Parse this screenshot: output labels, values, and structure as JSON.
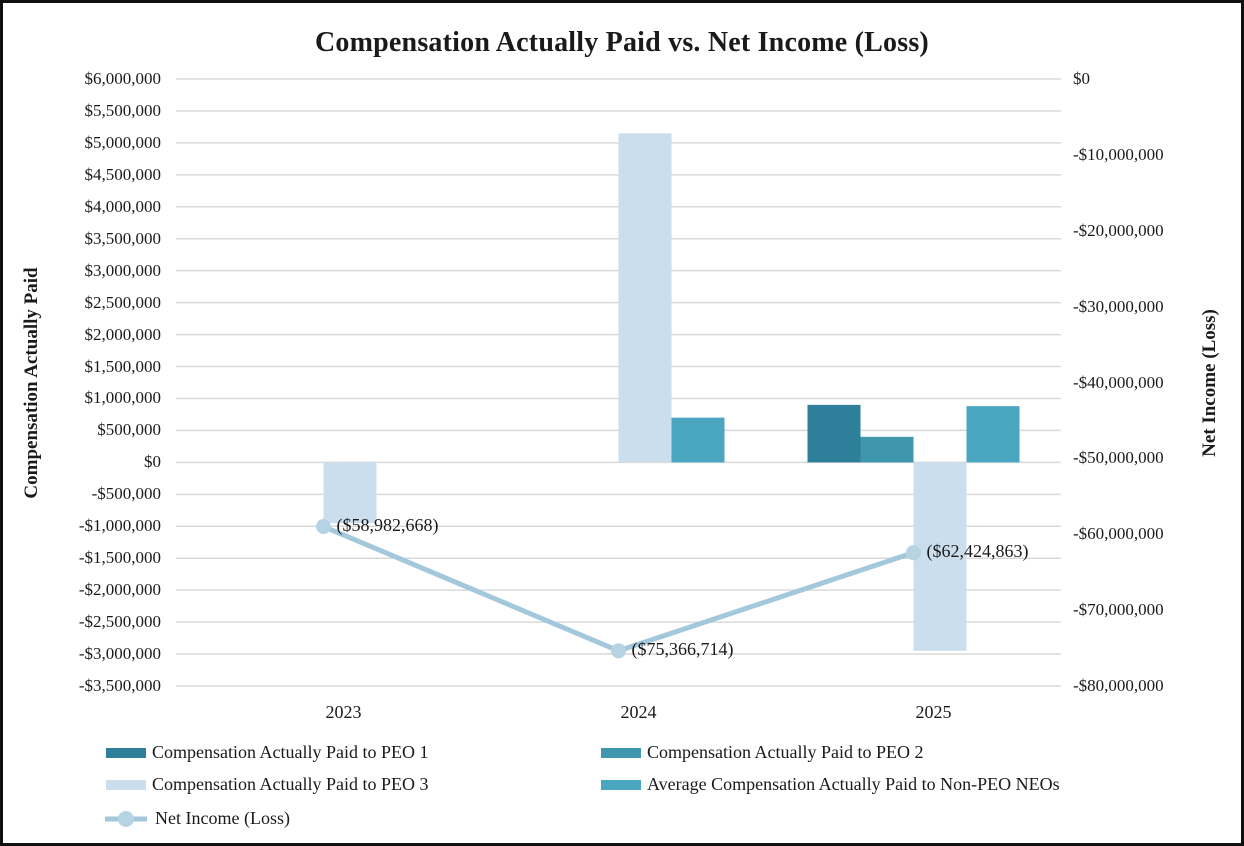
{
  "frame": {
    "background": "#ffffff",
    "border_color": "#101010"
  },
  "chart_data": {
    "type": "combo-bar-line",
    "title": "Compensation Actually Paid vs. Net Income (Loss)",
    "categories": [
      "2023",
      "2024",
      "2025"
    ],
    "grid": true,
    "gridline_color": "#d9d9d9",
    "legend_position": "bottom",
    "left_axis": {
      "label": "Compensation Actually Paid",
      "min": -3500000,
      "max": 6000000,
      "step": 500000,
      "tick_labels": [
        "$6,000,000",
        "$5,500,000",
        "$5,000,000",
        "$4,500,000",
        "$4,000,000",
        "$3,500,000",
        "$3,000,000",
        "$2,500,000",
        "$2,000,000",
        "$1,500,000",
        "$1,000,000",
        "$500,000",
        "$0",
        "-$500,000",
        "-$1,000,000",
        "-$1,500,000",
        "-$2,000,000",
        "-$2,500,000",
        "-$3,000,000",
        "-$3,500,000"
      ]
    },
    "right_axis": {
      "label": "Net Income (Loss)",
      "min": -80000000,
      "max": 0,
      "step": 10000000,
      "tick_labels": [
        "$0",
        "-$10,000,000",
        "-$20,000,000",
        "-$30,000,000",
        "-$40,000,000",
        "-$50,000,000",
        "-$60,000,000",
        "-$70,000,000",
        "-$80,000,000"
      ]
    },
    "bar_series": [
      {
        "name": "Compensation Actually Paid to PEO 1",
        "color": "#2e7f99",
        "axis": "left",
        "values": [
          null,
          null,
          900000
        ]
      },
      {
        "name": "Compensation Actually Paid to PEO 2",
        "color": "#3e97ad",
        "axis": "left",
        "values": [
          null,
          null,
          400000
        ]
      },
      {
        "name": "Compensation Actually Paid to PEO 3",
        "color": "#cbdeed",
        "axis": "left",
        "values": [
          -950000,
          5150000,
          -2950000
        ]
      },
      {
        "name": "Average Compensation Actually Paid to Non-PEO NEOs",
        "color": "#49a5c0",
        "axis": "left",
        "values": [
          null,
          700000,
          880000
        ]
      }
    ],
    "line_series": {
      "name": "Net Income (Loss)",
      "color": "#a3c8dc",
      "marker_color": "#b5d3e3",
      "axis": "right",
      "values": [
        -58982668,
        -75366714,
        -62424863
      ],
      "data_labels": [
        "($58,982,668)",
        "($75,366,714)",
        "($62,424,863)"
      ]
    },
    "legend": {
      "items": [
        {
          "label": "Compensation Actually Paid to PEO 1",
          "swatch": "bar",
          "series": 0
        },
        {
          "label": "Compensation Actually Paid to PEO 2",
          "swatch": "bar",
          "series": 1
        },
        {
          "label": "Compensation Actually Paid to PEO 3",
          "swatch": "bar",
          "series": 2
        },
        {
          "label": "Average Compensation Actually Paid to Non-PEO NEOs",
          "swatch": "bar",
          "series": 3
        },
        {
          "label": "Net Income (Loss)",
          "swatch": "line"
        }
      ]
    }
  }
}
